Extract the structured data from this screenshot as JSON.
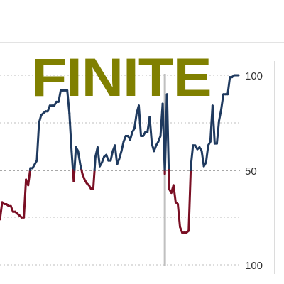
{
  "logo_text": "FINITE",
  "colors": {
    "line_above": "#1f3a5f",
    "line_below": "#7a0f24",
    "logo": "#808000",
    "grid": "#bdbdbd",
    "midline": "#a8a8a8",
    "cursor": "#c0c0c0"
  },
  "chart_data": {
    "type": "line",
    "y_ticks": [
      {
        "value": 100,
        "label": "100"
      },
      {
        "value": 50,
        "label": "50"
      },
      {
        "value": 0,
        "label": "100"
      }
    ],
    "ylim": [
      0,
      100
    ],
    "baseline": 50,
    "x": [
      0,
      1,
      2,
      3,
      4,
      5,
      6,
      7,
      8,
      9,
      10,
      11,
      12,
      13,
      14,
      15,
      16,
      17,
      18,
      19,
      20,
      21,
      22,
      23,
      24,
      25,
      26,
      27,
      28,
      29,
      30,
      31,
      32,
      33,
      34,
      35,
      36,
      37,
      38,
      39,
      40,
      41,
      42,
      43,
      44,
      45,
      46,
      47,
      48,
      49,
      50,
      51,
      52,
      53,
      54,
      55,
      56,
      57,
      58,
      59,
      60,
      61,
      62,
      63,
      64,
      65,
      66,
      67,
      68,
      69,
      70,
      71,
      72,
      73,
      74,
      75,
      76,
      77,
      78,
      79,
      80,
      81,
      82,
      83,
      84,
      85,
      86,
      87,
      88,
      89,
      90,
      91,
      92,
      93,
      94,
      95,
      96,
      97,
      98,
      99,
      100,
      101,
      102,
      103,
      104,
      105,
      106,
      107,
      108,
      109,
      110
    ],
    "values": [
      24,
      33,
      32,
      32,
      31,
      31,
      28,
      28,
      27,
      26,
      25,
      25,
      45,
      42,
      51,
      51,
      53,
      55,
      75,
      79,
      80,
      81,
      81,
      84,
      84,
      84,
      86,
      86,
      92,
      92,
      92,
      92,
      80,
      60,
      44,
      62,
      60,
      53,
      48,
      45,
      43,
      42,
      40,
      40,
      57,
      62,
      52,
      54,
      57,
      58,
      55,
      55,
      60,
      63,
      53,
      56,
      60,
      65,
      68,
      68,
      66,
      70,
      72,
      80,
      84,
      68,
      68,
      70,
      70,
      78,
      64,
      60,
      63,
      65,
      68,
      85,
      48,
      90,
      40,
      38,
      42,
      33,
      32,
      20,
      17,
      17,
      17,
      18,
      52,
      63,
      63,
      61,
      62,
      60,
      52,
      54,
      63,
      65,
      84,
      64,
      64,
      76,
      82,
      90,
      90,
      90,
      99,
      99,
      100,
      100,
      100
    ],
    "cursor_x": 76
  }
}
